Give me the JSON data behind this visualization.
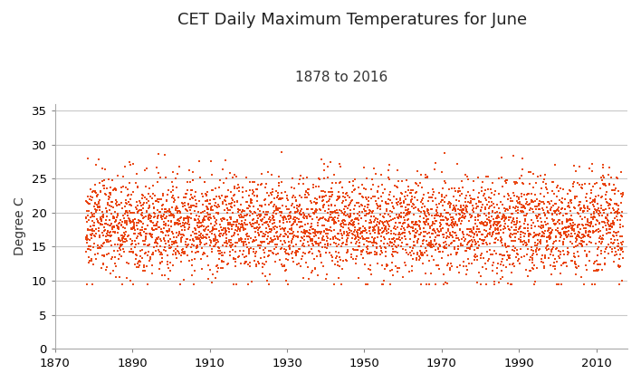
{
  "title": "CET Daily Maximum Temperatures for June",
  "subtitle": "1878 to 2016",
  "ylabel": "Degree C",
  "xlabel": "",
  "xlim": [
    1870,
    2018
  ],
  "ylim": [
    0,
    36
  ],
  "yticks": [
    0,
    5,
    10,
    15,
    20,
    25,
    30,
    35
  ],
  "xticks": [
    1870,
    1890,
    1910,
    1930,
    1950,
    1970,
    1990,
    2010
  ],
  "year_start": 1878,
  "year_end": 2016,
  "dot_color": "#E83800",
  "dot_size": 1.8,
  "dot_alpha": 0.9,
  "background_color": "#FFFFFF",
  "figure_background": "#FFFFFF",
  "title_fontsize": 13,
  "subtitle_fontsize": 11,
  "label_fontsize": 10,
  "tick_fontsize": 9.5,
  "grid_color": "#C8C8C8",
  "seed": 42,
  "mean_temp": 18.2,
  "std_temp": 3.5,
  "days_per_year": 30
}
